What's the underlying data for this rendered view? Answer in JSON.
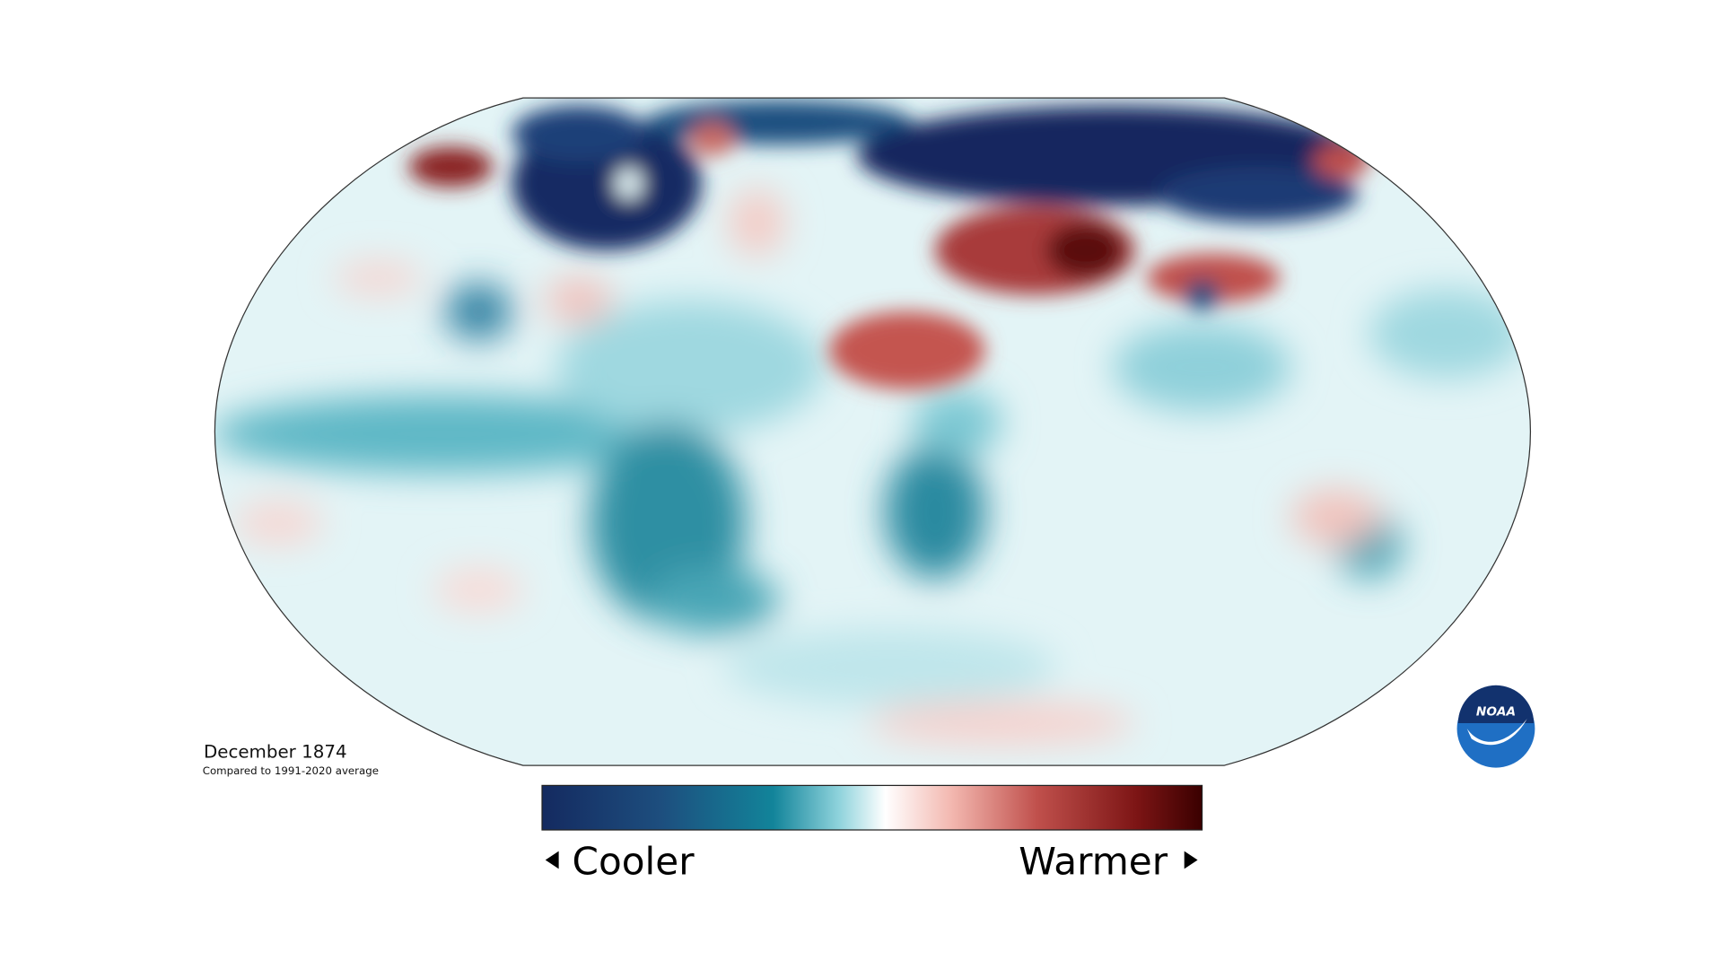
{
  "title": "December 1874",
  "subtitle": "Compared to 1991-2020 average",
  "legend": {
    "low_label": "Cooler",
    "high_label": "Warmer"
  },
  "logo": {
    "text": "NOAA"
  }
}
